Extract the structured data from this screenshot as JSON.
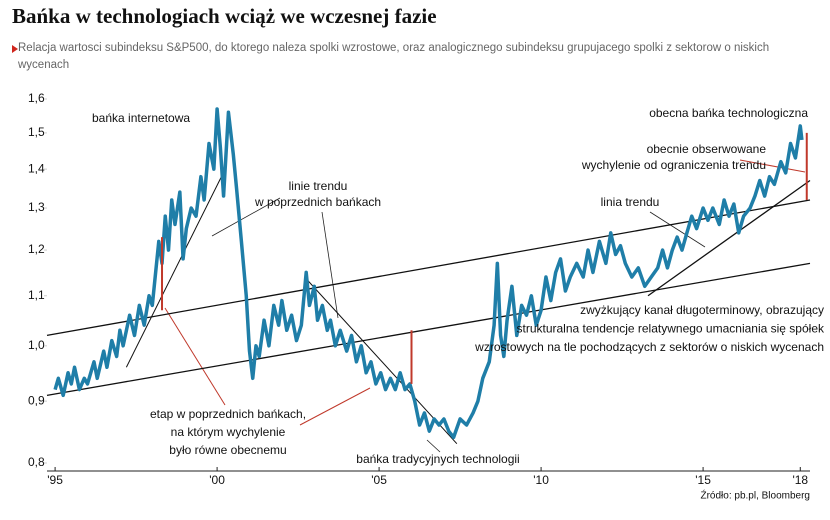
{
  "chart_data": {
    "type": "line",
    "title": "Bańka w technologiach wciąż we wczesnej fazie",
    "subtitle": "Relacja wartosci subindeksu S&P500, do ktorego naleza spolki wzrostowe, oraz analogicznego subindeksu grupujacego spolki z sektorow o niskich wycenach",
    "source": "Źródło: pb.pl, Bloomberg",
    "log_scale": true,
    "xlim": [
      1994.75,
      2018.3
    ],
    "ylim": [
      0.8,
      1.6
    ],
    "yticks": [
      {
        "value": 0.8,
        "label": "0,8"
      },
      {
        "value": 0.9,
        "label": "0,9"
      },
      {
        "value": 1.0,
        "label": "1,0"
      },
      {
        "value": 1.1,
        "label": "1,1"
      },
      {
        "value": 1.2,
        "label": "1,2"
      },
      {
        "value": 1.3,
        "label": "1,3"
      },
      {
        "value": 1.4,
        "label": "1,4"
      },
      {
        "value": 1.5,
        "label": "1,5"
      },
      {
        "value": 1.6,
        "label": "1,6"
      }
    ],
    "xticks": [
      {
        "value": 1995,
        "label": "'95"
      },
      {
        "value": 2000,
        "label": "'00"
      },
      {
        "value": 2005,
        "label": "'05"
      },
      {
        "value": 2010,
        "label": "'10"
      },
      {
        "value": 2015,
        "label": "'15"
      },
      {
        "value": 2018,
        "label": "'18"
      }
    ],
    "x": [
      1995.0,
      1995.1,
      1995.25,
      1995.4,
      1995.5,
      1995.6,
      1995.75,
      1995.9,
      1996.0,
      1996.2,
      1996.3,
      1996.5,
      1996.6,
      1996.75,
      1996.9,
      1997.0,
      1997.1,
      1997.3,
      1997.45,
      1997.6,
      1997.75,
      1997.9,
      1998.0,
      1998.2,
      1998.3,
      1998.4,
      1998.5,
      1998.6,
      1998.7,
      1998.85,
      1998.95,
      1999.05,
      1999.2,
      1999.35,
      1999.5,
      1999.6,
      1999.75,
      1999.9,
      2000.0,
      2000.1,
      2000.2,
      2000.35,
      2000.5,
      2000.6,
      2000.75,
      2000.9,
      2001.0,
      2001.1,
      2001.2,
      2001.3,
      2001.45,
      2001.6,
      2001.75,
      2001.9,
      2002.0,
      2002.15,
      2002.3,
      2002.45,
      2002.6,
      2002.75,
      2002.85,
      2003.0,
      2003.1,
      2003.25,
      2003.4,
      2003.5,
      2003.65,
      2003.8,
      2004.0,
      2004.15,
      2004.3,
      2004.45,
      2004.6,
      2004.75,
      2004.9,
      2005.05,
      2005.2,
      2005.35,
      2005.5,
      2005.65,
      2005.8,
      2005.95,
      2006.1,
      2006.25,
      2006.4,
      2006.55,
      2006.7,
      2006.85,
      2007.0,
      2007.15,
      2007.3,
      2007.5,
      2007.7,
      2007.9,
      2008.05,
      2008.2,
      2008.4,
      2008.55,
      2008.65,
      2008.75,
      2008.85,
      2008.95,
      2009.1,
      2009.25,
      2009.4,
      2009.55,
      2009.7,
      2009.85,
      2010.0,
      2010.15,
      2010.3,
      2010.45,
      2010.6,
      2010.75,
      2010.9,
      2011.1,
      2011.3,
      2011.45,
      2011.6,
      2011.8,
      2012.0,
      2012.15,
      2012.3,
      2012.45,
      2012.6,
      2012.8,
      2013.0,
      2013.2,
      2013.4,
      2013.6,
      2013.75,
      2013.9,
      2014.05,
      2014.2,
      2014.35,
      2014.5,
      2014.65,
      2014.8,
      2015.0,
      2015.15,
      2015.3,
      2015.5,
      2015.65,
      2015.8,
      2015.95,
      2016.1,
      2016.25,
      2016.45,
      2016.6,
      2016.75,
      2016.9,
      2017.05,
      2017.2,
      2017.4,
      2017.55,
      2017.7,
      2017.85,
      2018.0,
      2018.05
    ],
    "series": [
      {
        "color": "#1f7ea8",
        "values": [
          0.92,
          0.94,
          0.91,
          0.95,
          0.93,
          0.96,
          0.92,
          0.94,
          0.93,
          0.97,
          0.94,
          0.99,
          0.96,
          1.01,
          0.98,
          1.03,
          1.0,
          1.06,
          1.02,
          1.08,
          1.04,
          1.1,
          1.08,
          1.22,
          1.17,
          1.28,
          1.2,
          1.32,
          1.26,
          1.34,
          1.18,
          1.25,
          1.3,
          1.28,
          1.38,
          1.32,
          1.47,
          1.4,
          1.57,
          1.46,
          1.33,
          1.56,
          1.44,
          1.35,
          1.22,
          1.1,
          0.99,
          0.94,
          1.0,
          0.98,
          1.05,
          1.0,
          1.08,
          1.04,
          1.09,
          1.03,
          1.06,
          1.01,
          1.04,
          1.15,
          1.08,
          1.12,
          1.05,
          1.08,
          1.03,
          1.05,
          1.0,
          1.03,
          0.99,
          1.02,
          0.97,
          1.0,
          0.95,
          0.97,
          0.93,
          0.95,
          0.92,
          0.94,
          0.92,
          0.95,
          0.92,
          0.93,
          0.9,
          0.86,
          0.88,
          0.85,
          0.87,
          0.86,
          0.87,
          0.85,
          0.84,
          0.87,
          0.86,
          0.88,
          0.9,
          0.94,
          0.97,
          1.04,
          1.17,
          1.02,
          0.98,
          1.05,
          1.12,
          1.02,
          1.08,
          1.06,
          1.1,
          1.04,
          1.07,
          1.14,
          1.09,
          1.15,
          1.18,
          1.11,
          1.14,
          1.17,
          1.14,
          1.2,
          1.15,
          1.22,
          1.17,
          1.24,
          1.19,
          1.21,
          1.17,
          1.14,
          1.16,
          1.12,
          1.14,
          1.16,
          1.2,
          1.16,
          1.2,
          1.23,
          1.2,
          1.24,
          1.28,
          1.25,
          1.3,
          1.27,
          1.3,
          1.26,
          1.32,
          1.28,
          1.31,
          1.24,
          1.28,
          1.3,
          1.33,
          1.37,
          1.33,
          1.38,
          1.36,
          1.42,
          1.39,
          1.47,
          1.43,
          1.52,
          1.48
        ]
      }
    ],
    "trend_lines": [
      {
        "x": [
          1994.75,
          2018.3
        ],
        "y": [
          1.02,
          1.32
        ]
      },
      {
        "x": [
          1994.75,
          2018.3
        ],
        "y": [
          0.91,
          1.17
        ]
      },
      {
        "x": [
          2013.3,
          2018.3
        ],
        "y": [
          1.1,
          1.37
        ]
      },
      {
        "x": [
          1997.2,
          2000.25
        ],
        "y": [
          0.96,
          1.4
        ]
      },
      {
        "x": [
          2002.7,
          2007.4
        ],
        "y": [
          1.14,
          0.83
        ]
      }
    ],
    "markers": [
      {
        "x": 1998.3,
        "y": [
          1.07,
          1.23
        ]
      },
      {
        "x": 2006.0,
        "y": [
          0.93,
          1.03
        ]
      },
      {
        "x": 2018.2,
        "y": [
          1.32,
          1.5
        ]
      }
    ],
    "annotations": [
      {
        "lines": [
          "bańka internetowa"
        ]
      },
      {
        "lines": [
          "linie trendu",
          "w poprzednich bańkach"
        ]
      },
      {
        "lines": [
          "obecna bańka technologiczna"
        ]
      },
      {
        "lines": [
          "obecnie obserwowane",
          "wychylenie od ograniczenia trendu"
        ]
      },
      {
        "lines": [
          "linia trendu"
        ]
      },
      {
        "lines": [
          "zwyżkujący kanał długoterminowy, obrazujący",
          "strukturalna tendencje relatywnego umacniania się spółek",
          "wzrostowych na tle pochodzących z sektorów o niskich wycenach"
        ]
      },
      {
        "lines": [
          "etap w poprzednich bańkach,",
          "na którym wychylenie",
          "było równe obecnemu"
        ]
      },
      {
        "lines": [
          "bańka tradycyjnych technologii"
        ]
      }
    ]
  }
}
